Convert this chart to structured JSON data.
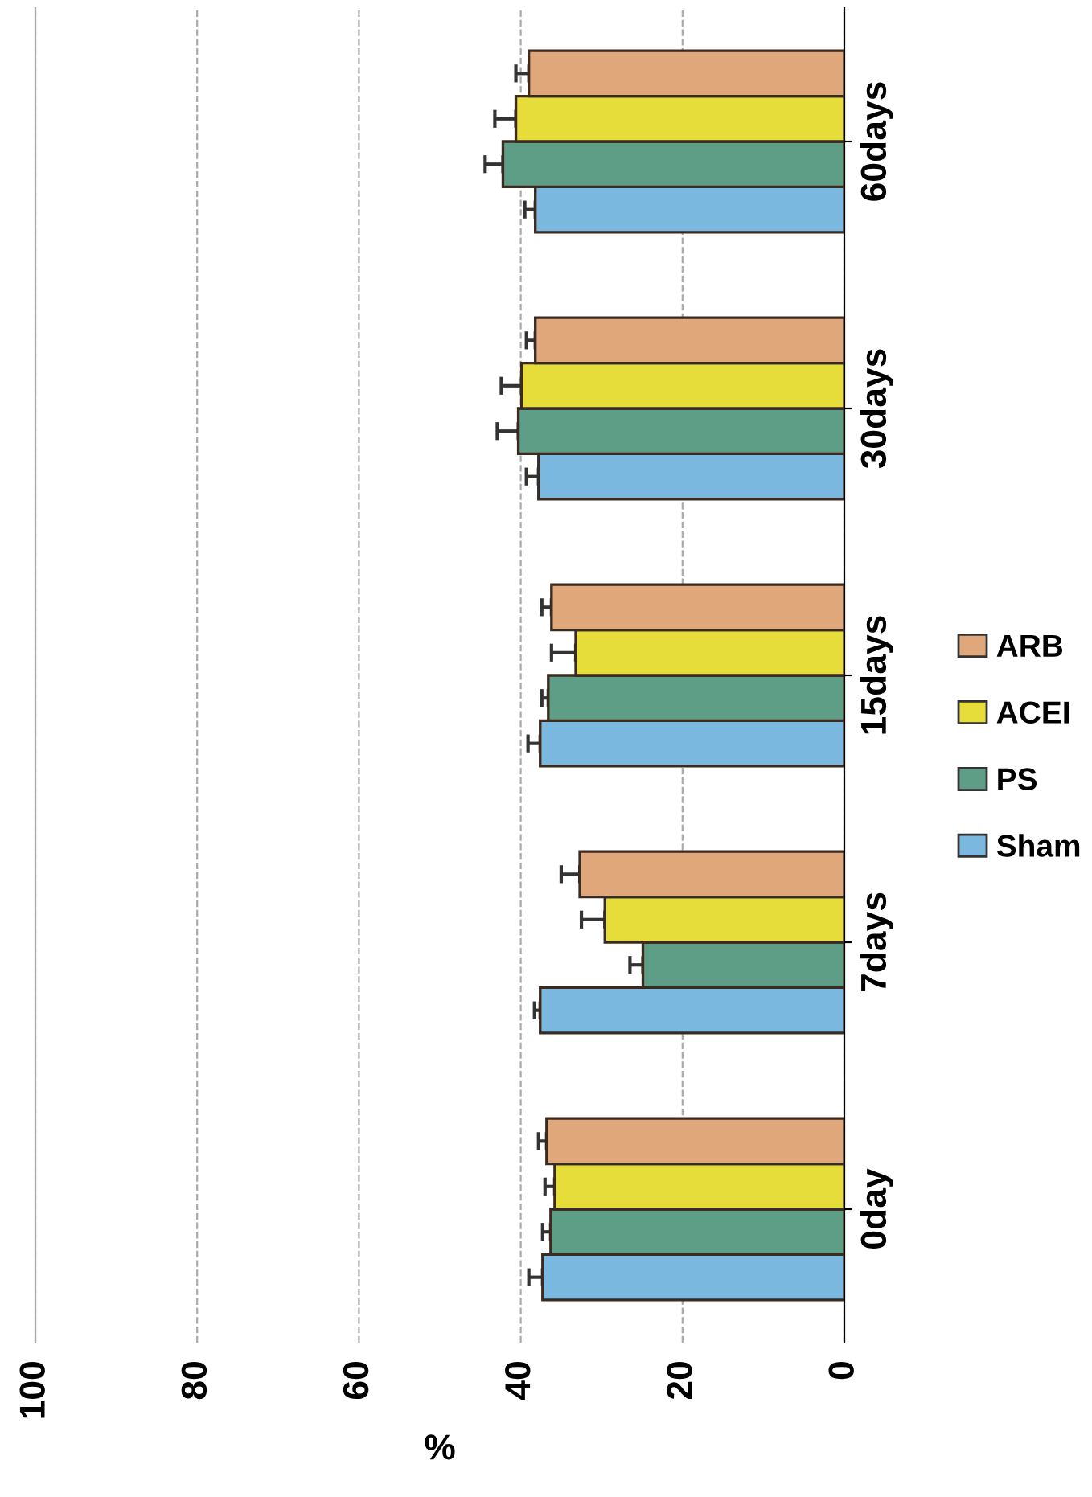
{
  "chart_data": {
    "type": "bar",
    "orientation": "horizontal",
    "xlabel": "%",
    "categories": [
      "60days",
      "30days",
      "15days",
      "7days",
      "0day"
    ],
    "series": [
      {
        "name": "Sham",
        "color": "#7ab8e0",
        "values": [
          38.2,
          37.8,
          37.6,
          37.6,
          37.3
        ],
        "errors": [
          1.3,
          1.5,
          1.5,
          0.7,
          1.7
        ]
      },
      {
        "name": "PS",
        "color": "#5e9e86",
        "values": [
          42.2,
          40.3,
          36.6,
          24.9,
          36.3
        ],
        "errors": [
          2.2,
          2.6,
          0.8,
          1.6,
          1.0
        ]
      },
      {
        "name": "ACEI",
        "color": "#e6dc3a",
        "values": [
          40.6,
          39.9,
          33.2,
          29.6,
          35.8
        ],
        "errors": [
          2.6,
          2.5,
          3.0,
          2.9,
          1.2
        ]
      },
      {
        "name": "ARB",
        "color": "#e0a87a",
        "values": [
          39.0,
          38.2,
          36.2,
          32.7,
          36.8
        ],
        "errors": [
          1.6,
          1.1,
          1.2,
          2.3,
          1.0
        ]
      }
    ],
    "xlim": [
      100,
      0
    ],
    "xticks": [
      0,
      20,
      40,
      60,
      80,
      100
    ],
    "grid": "x",
    "legend": "right"
  }
}
